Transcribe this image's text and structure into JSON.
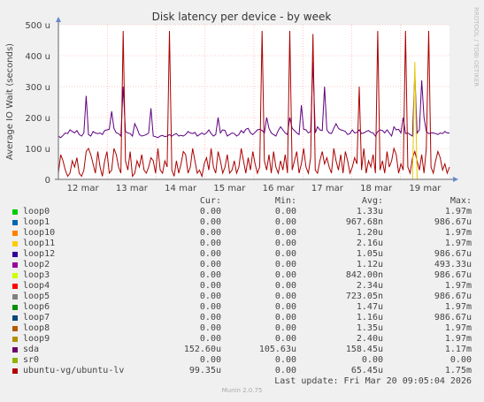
{
  "chart_data": {
    "type": "line",
    "title": "Disk latency per device - by week",
    "ylabel": "Average IO Wait (seconds)",
    "watermark": "RRDTOOL / TOBI OETIKER",
    "ylim": [
      0,
      500
    ],
    "y_ticks": [
      {
        "value": 0,
        "label": "0"
      },
      {
        "value": 100,
        "label": "100 u"
      },
      {
        "value": 200,
        "label": "200 u"
      },
      {
        "value": 300,
        "label": "300 u"
      },
      {
        "value": 400,
        "label": "400 u"
      },
      {
        "value": 500,
        "label": "500 u"
      }
    ],
    "x_tick_labels": [
      "12 mar",
      "13 mar",
      "14 mar",
      "15 mar",
      "16 mar",
      "17 mar",
      "18 mar",
      "19 mar"
    ],
    "series": [
      {
        "name": "sda",
        "color": "#5e0080",
        "values": [
          140,
          135,
          142,
          150,
          148,
          160,
          155,
          150,
          158,
          145,
          140,
          150,
          270,
          145,
          140,
          155,
          150,
          148,
          150,
          145,
          158,
          160,
          162,
          220,
          165,
          150,
          148,
          140,
          300,
          155,
          150,
          148,
          140,
          180,
          165,
          145,
          140,
          142,
          145,
          150,
          230,
          140,
          138,
          135,
          140,
          142,
          138,
          140,
          145,
          140,
          145,
          148,
          140,
          142,
          140,
          145,
          155,
          150,
          148,
          152,
          140,
          145,
          150,
          145,
          150,
          160,
          148,
          140,
          145,
          200,
          150,
          160,
          158,
          140,
          145,
          150,
          148,
          140,
          145,
          158,
          150,
          162,
          165,
          150,
          145,
          152,
          160,
          162,
          158,
          150,
          200,
          165,
          150,
          145,
          140,
          158,
          170,
          160,
          150,
          145,
          200,
          165,
          158,
          150,
          145,
          240,
          162,
          160,
          150,
          155,
          380,
          150,
          170,
          160,
          158,
          300,
          160,
          150,
          148,
          165,
          180,
          165,
          160,
          158,
          155,
          145,
          148,
          160,
          150,
          152,
          160,
          148,
          150,
          155,
          158,
          152,
          150,
          140,
          155,
          160,
          158,
          150,
          160,
          150,
          140,
          170,
          160,
          162,
          150,
          200,
          148,
          150,
          145,
          140,
          345,
          150,
          160,
          320,
          200,
          155,
          148,
          150,
          150,
          148,
          145,
          150,
          148,
          155,
          150,
          150
        ]
      },
      {
        "name": "ubuntu-vg/ubuntu-lv",
        "color": "#aa0000",
        "values": [
          20,
          80,
          60,
          30,
          10,
          20,
          60,
          40,
          70,
          20,
          10,
          30,
          90,
          100,
          80,
          50,
          20,
          90,
          40,
          10,
          60,
          90,
          20,
          30,
          100,
          80,
          40,
          20,
          480,
          60,
          30,
          90,
          10,
          20,
          60,
          40,
          80,
          30,
          20,
          40,
          70,
          60,
          20,
          100,
          30,
          20,
          60,
          40,
          480,
          30,
          10,
          60,
          20,
          50,
          90,
          80,
          20,
          40,
          100,
          60,
          20,
          30,
          10,
          50,
          70,
          30,
          100,
          40,
          20,
          90,
          60,
          20,
          40,
          80,
          20,
          30,
          60,
          20,
          40,
          100,
          60,
          20,
          70,
          30,
          90,
          50,
          20,
          40,
          480,
          60,
          30,
          80,
          20,
          90,
          40,
          20,
          60,
          30,
          80,
          20,
          480,
          30,
          60,
          90,
          20,
          50,
          100,
          40,
          20,
          70,
          470,
          30,
          20,
          60,
          90,
          50,
          70,
          40,
          20,
          100,
          60,
          30,
          80,
          20,
          90,
          60,
          20,
          40,
          70,
          50,
          300,
          30,
          100,
          20,
          60,
          40,
          80,
          20,
          480,
          30,
          60,
          20,
          90,
          40,
          60,
          100,
          80,
          20,
          50,
          30,
          480,
          40,
          20,
          70,
          90,
          60,
          30,
          80,
          20,
          100,
          480,
          40,
          20,
          60,
          90,
          70,
          30,
          50,
          20,
          40
        ]
      },
      {
        "name": "loop11",
        "color": "#e6c800",
        "values": [
          0,
          0,
          0,
          0,
          0,
          0,
          0,
          0,
          0,
          0,
          0,
          0,
          0,
          0,
          0,
          0,
          0,
          0,
          0,
          0,
          0,
          0,
          0,
          0,
          0,
          0,
          0,
          0,
          0,
          0,
          0,
          0,
          0,
          0,
          0,
          0,
          0,
          0,
          0,
          0,
          0,
          0,
          0,
          0,
          0,
          0,
          0,
          0,
          0,
          0,
          0,
          0,
          0,
          0,
          0,
          0,
          0,
          0,
          0,
          0,
          0,
          0,
          0,
          0,
          0,
          0,
          0,
          0,
          0,
          0,
          0,
          0,
          0,
          0,
          0,
          0,
          0,
          0,
          0,
          0,
          0,
          0,
          0,
          0,
          0,
          0,
          0,
          0,
          0,
          0,
          0,
          0,
          0,
          0,
          0,
          0,
          0,
          0,
          0,
          0,
          0,
          0,
          0,
          0,
          0,
          0,
          0,
          0,
          0,
          0,
          0,
          0,
          0,
          0,
          0,
          0,
          0,
          0,
          0,
          0,
          0,
          0,
          0,
          0,
          0,
          0,
          0,
          0,
          0,
          0,
          0,
          0,
          0,
          0,
          0,
          0,
          0,
          0,
          0,
          0,
          0,
          0,
          0,
          0,
          0,
          0,
          0,
          0,
          0,
          0,
          0,
          0,
          0,
          0,
          380,
          0,
          0,
          0,
          0,
          0,
          0,
          0,
          0,
          0,
          0,
          0,
          0,
          0,
          0,
          0
        ]
      }
    ],
    "legend": {
      "headers": {
        "cur": "Cur:",
        "min": "Min:",
        "avg": "Avg:",
        "max": "Max:"
      },
      "rows": [
        {
          "name": "loop0",
          "color": "#00cc00",
          "cur": "0.00",
          "min": "0.00",
          "avg": "1.33u",
          "max": "1.97m"
        },
        {
          "name": "loop1",
          "color": "#0066b3",
          "cur": "0.00",
          "min": "0.00",
          "avg": "967.68n",
          "max": "986.67u"
        },
        {
          "name": "loop10",
          "color": "#ff8000",
          "cur": "0.00",
          "min": "0.00",
          "avg": "1.20u",
          "max": "1.97m"
        },
        {
          "name": "loop11",
          "color": "#ffcc00",
          "cur": "0.00",
          "min": "0.00",
          "avg": "2.16u",
          "max": "1.97m"
        },
        {
          "name": "loop12",
          "color": "#330099",
          "cur": "0.00",
          "min": "0.00",
          "avg": "1.05u",
          "max": "986.67u"
        },
        {
          "name": "loop2",
          "color": "#990099",
          "cur": "0.00",
          "min": "0.00",
          "avg": "1.12u",
          "max": "493.33u"
        },
        {
          "name": "loop3",
          "color": "#ccff00",
          "cur": "0.00",
          "min": "0.00",
          "avg": "842.00n",
          "max": "986.67u"
        },
        {
          "name": "loop4",
          "color": "#ff0000",
          "cur": "0.00",
          "min": "0.00",
          "avg": "2.34u",
          "max": "1.97m"
        },
        {
          "name": "loop5",
          "color": "#808080",
          "cur": "0.00",
          "min": "0.00",
          "avg": "723.05n",
          "max": "986.67u"
        },
        {
          "name": "loop6",
          "color": "#008f00",
          "cur": "0.00",
          "min": "0.00",
          "avg": "1.47u",
          "max": "1.97m"
        },
        {
          "name": "loop7",
          "color": "#00487d",
          "cur": "0.00",
          "min": "0.00",
          "avg": "1.16u",
          "max": "986.67u"
        },
        {
          "name": "loop8",
          "color": "#b35a00",
          "cur": "0.00",
          "min": "0.00",
          "avg": "1.35u",
          "max": "1.97m"
        },
        {
          "name": "loop9",
          "color": "#b38f00",
          "cur": "0.00",
          "min": "0.00",
          "avg": "2.40u",
          "max": "1.97m"
        },
        {
          "name": "sda",
          "color": "#6b006b",
          "cur": "152.60u",
          "min": "105.63u",
          "avg": "158.45u",
          "max": "1.17m"
        },
        {
          "name": "sr0",
          "color": "#8fb300",
          "cur": "0.00",
          "min": "0.00",
          "avg": "0.00",
          "max": "0.00"
        },
        {
          "name": "ubuntu-vg/ubuntu-lv",
          "color": "#b30000",
          "cur": "99.35u",
          "min": "0.00",
          "avg": "65.45u",
          "max": "1.75m"
        }
      ]
    }
  },
  "footer": {
    "last_update": "Last update: Fri Mar 20 09:05:04 2026",
    "munin_version": "Munin 2.0.75"
  }
}
